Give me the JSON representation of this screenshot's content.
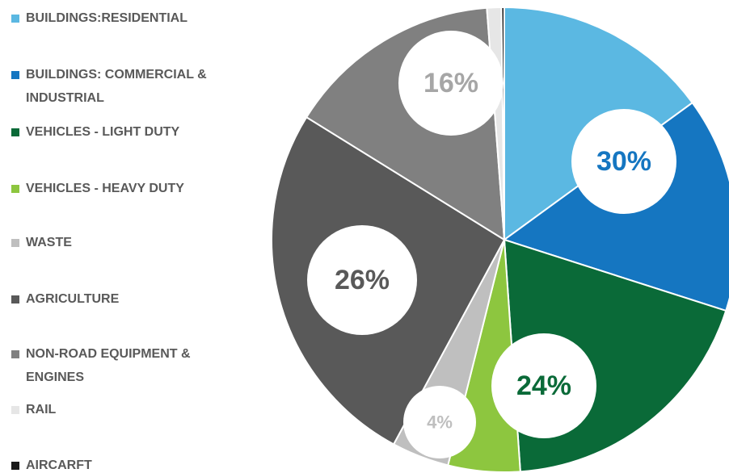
{
  "chart_data": {
    "type": "pie",
    "categories": [
      "BUILDINGS:RESIDENTIAL",
      "BUILDINGS: COMMERCIAL & INDUSTRIAL",
      "VEHICLES - LIGHT DUTY",
      "VEHICLES - HEAVY DUTY",
      "WASTE",
      "AGRICULTURE",
      "NON-ROAD EQUIPMENT & ENGINES",
      "RAIL",
      "AIRCARFT"
    ],
    "values": [
      15,
      15,
      19,
      5,
      4,
      26,
      15,
      1,
      0.2
    ],
    "colors": [
      "#5bb8e2",
      "#1576c1",
      "#0a6a38",
      "#8dc63f",
      "#bfbfbf",
      "#595959",
      "#808080",
      "#e6e6e6",
      "#1a1a1a"
    ],
    "annotations": [
      {
        "label": "30%",
        "color": "#1576c1"
      },
      {
        "label": "24%",
        "color": "#0a6a38"
      },
      {
        "label": "4%",
        "color": "#bfbfbf"
      },
      {
        "label": "26%",
        "color": "#595959"
      },
      {
        "label": "16%",
        "color": "#a6a6a6"
      }
    ],
    "legend": "left"
  }
}
